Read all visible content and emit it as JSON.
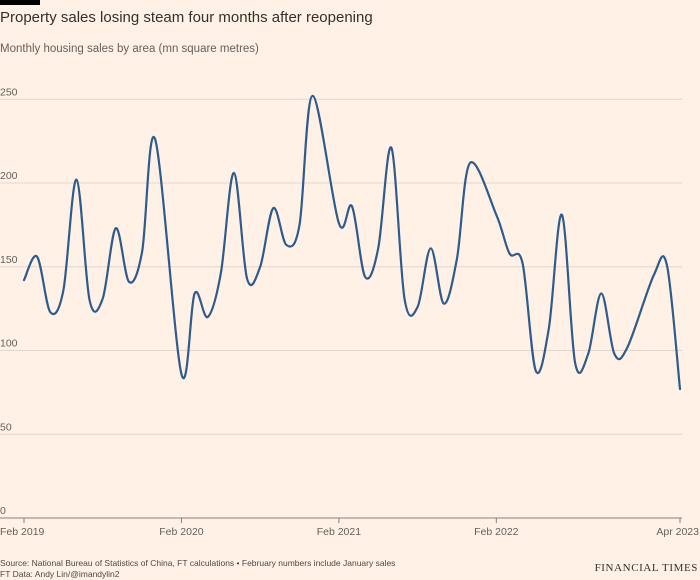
{
  "header": {
    "title": "Property sales losing steam four months after reopening",
    "subtitle": "Monthly housing sales by area (mn square metres)"
  },
  "footer": {
    "source": "Source: National Bureau of Statistics of China, FT calculations • February numbers include January sales",
    "credit": "FT Data: Andy Lin/@imandylin2"
  },
  "brand": {
    "logo_text": "FINANCIAL TIMES"
  },
  "colors": {
    "line": "#2f5b8c",
    "grid": "#e3d6ca",
    "background": "#fff1e5"
  },
  "chart_data": {
    "type": "line",
    "title": "Property sales losing steam four months after reopening",
    "subtitle": "Monthly housing sales by area (mn square metres)",
    "xlabel": "",
    "ylabel": "",
    "ylim": [
      0,
      260
    ],
    "yticks": [
      0,
      50,
      100,
      150,
      200,
      250
    ],
    "xticks": [
      "Feb 2019",
      "Feb 2020",
      "Feb 2021",
      "Feb 2022",
      "Apr 2023"
    ],
    "xtick_dates": [
      "2019-02",
      "2020-02",
      "2021-02",
      "2022-02",
      "2023-04"
    ],
    "grid": true,
    "series": [
      {
        "color": "#2f5b8c",
        "x": [
          "2019-02",
          "2019-03",
          "2019-04",
          "2019-05",
          "2019-06",
          "2019-07",
          "2019-08",
          "2019-09",
          "2019-10",
          "2019-11",
          "2019-12",
          "2020-02",
          "2020-03",
          "2020-04",
          "2020-05",
          "2020-06",
          "2020-07",
          "2020-08",
          "2020-09",
          "2020-10",
          "2020-11",
          "2020-12",
          "2021-02",
          "2021-03",
          "2021-04",
          "2021-05",
          "2021-06",
          "2021-07",
          "2021-08",
          "2021-09",
          "2021-10",
          "2021-11",
          "2021-12",
          "2022-02",
          "2022-03",
          "2022-04",
          "2022-05",
          "2022-06",
          "2022-07",
          "2022-08",
          "2022-09",
          "2022-10",
          "2022-11",
          "2022-12",
          "2023-02",
          "2023-03",
          "2023-04"
        ],
        "values": [
          142,
          156,
          123,
          136,
          202,
          130,
          131,
          173,
          141,
          159,
          226,
          86,
          134,
          120,
          146,
          206,
          143,
          150,
          185,
          163,
          175,
          252,
          176,
          186,
          144,
          161,
          221,
          131,
          126,
          161,
          128,
          155,
          212,
          181,
          158,
          152,
          88,
          113,
          181,
          93,
          98,
          134,
          98,
          102,
          145,
          151,
          77
        ]
      }
    ]
  }
}
